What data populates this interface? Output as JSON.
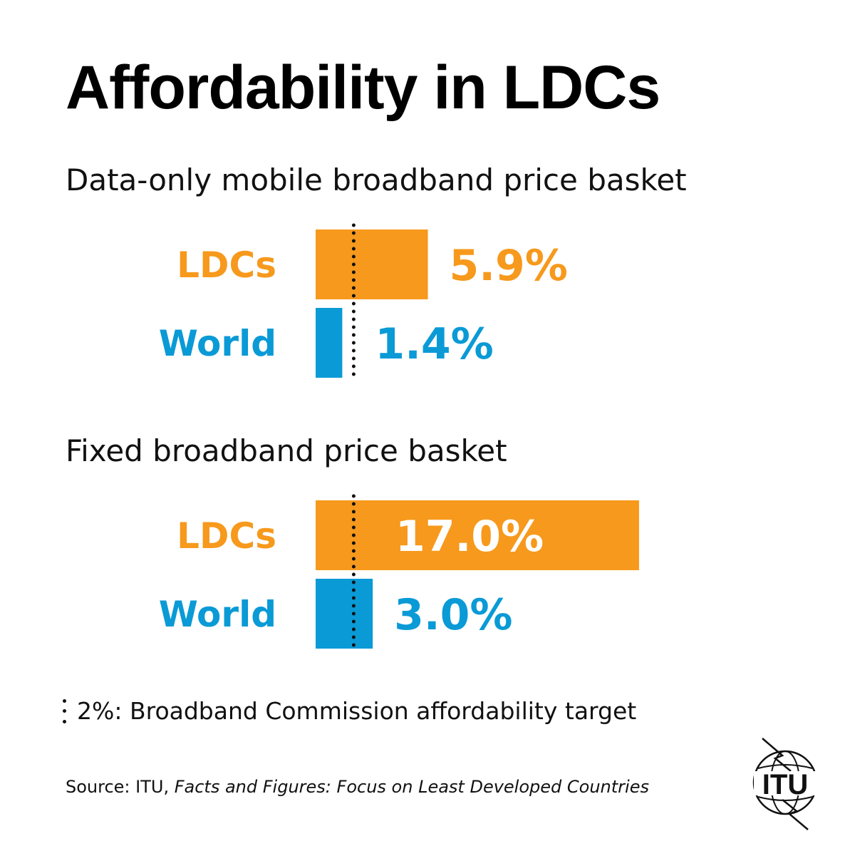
{
  "title": "Affordability in LDCs",
  "colors": {
    "ldcs": "#F7991C",
    "world": "#0A9AD6",
    "target_line": "#111111"
  },
  "chart_data": [
    {
      "type": "bar",
      "orientation": "horizontal",
      "title": "Data-only mobile broadband price basket",
      "categories": [
        "LDCs",
        "World"
      ],
      "values": [
        5.9,
        1.4
      ],
      "value_labels": [
        "5.9%",
        "1.4%"
      ],
      "unit": "%",
      "reference_line": {
        "value": 2,
        "style": "dotted"
      }
    },
    {
      "type": "bar",
      "orientation": "horizontal",
      "title": "Fixed broadband price basket",
      "categories": [
        "LDCs",
        "World"
      ],
      "values": [
        17.0,
        3.0
      ],
      "value_labels": [
        "17.0%",
        "3.0%"
      ],
      "unit": "%",
      "reference_line": {
        "value": 2,
        "style": "dotted"
      }
    }
  ],
  "legend": {
    "text": "2%: Broadband Commission affordability target"
  },
  "source": {
    "prefix": "Source: ITU, ",
    "publication": "Facts and Figures: Focus on Least Developed Countries"
  },
  "logo": {
    "text": "ITU",
    "icon": "itu-globe-logo"
  }
}
